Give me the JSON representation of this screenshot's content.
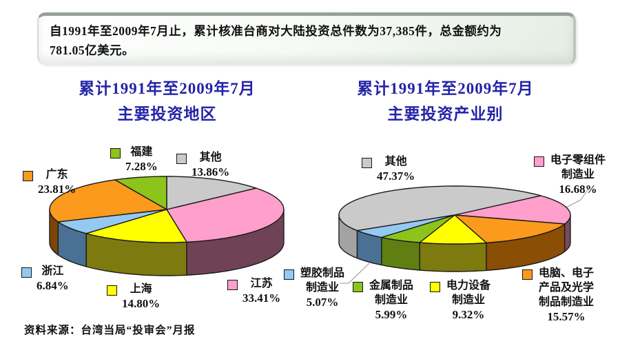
{
  "info_box": {
    "line1": "自1991年至2009年7月止，累计核准台商对大陆投资总件数为37,385件，总金额约为",
    "line2": "781.05亿美元。"
  },
  "source": "资料来源：台湾当局“投审会”月报",
  "chart_data": [
    {
      "type": "pie",
      "title_line1": "累计1991年至2009年7月",
      "title_line2": "主要投资地区",
      "legend_position": "around",
      "slices": [
        {
          "label": "其他",
          "value": 13.86,
          "pct": "13.86%",
          "color": "#CACACA",
          "side": "#9B9B9B"
        },
        {
          "label": "江苏",
          "value": 33.41,
          "pct": "33.41%",
          "color": "#FF9FCC",
          "side": "#6F4355"
        },
        {
          "label": "上海",
          "value": 14.8,
          "pct": "14.80%",
          "color": "#FFFF00",
          "side": "#7D7A10"
        },
        {
          "label": "浙江",
          "value": 6.84,
          "pct": "6.84%",
          "color": "#94C9F2",
          "side": "#4A7193"
        },
        {
          "label": "广东",
          "value": 23.81,
          "pct": "23.81%",
          "color": "#FB9A1C",
          "side": "#7C4507"
        },
        {
          "label": "福建",
          "value": 7.28,
          "pct": "7.28%",
          "color": "#8CC41C",
          "side": "#587A0B"
        }
      ]
    },
    {
      "type": "pie",
      "title_line1": "累计1991年至2009年7月",
      "title_line2": "主要投资产业别",
      "legend_position": "around",
      "slices": [
        {
          "label": "电子零组件制造业",
          "value": 16.68,
          "pct": "16.68%",
          "color": "#FF9FCC",
          "side": "#7A4B5E"
        },
        {
          "label": "电脑、电子产品及光学制品制造业",
          "value": 15.57,
          "pct": "15.57%",
          "color": "#FB9A1C",
          "side": "#8A4E05"
        },
        {
          "label": "电力设备制造业",
          "value": 9.32,
          "pct": "9.32%",
          "color": "#FFFF00",
          "side": "#7D7A10"
        },
        {
          "label": "金属制品制造业",
          "value": 5.99,
          "pct": "5.99%",
          "color": "#8CC41C",
          "side": "#5F7F12"
        },
        {
          "label": "塑胶制品制造业",
          "value": 5.07,
          "pct": "5.07%",
          "color": "#94C9F2",
          "side": "#4A7193"
        },
        {
          "label": "其他",
          "value": 47.37,
          "pct": "47.37%",
          "color": "#CACACA",
          "side": "#A3A3A3"
        }
      ]
    }
  ]
}
